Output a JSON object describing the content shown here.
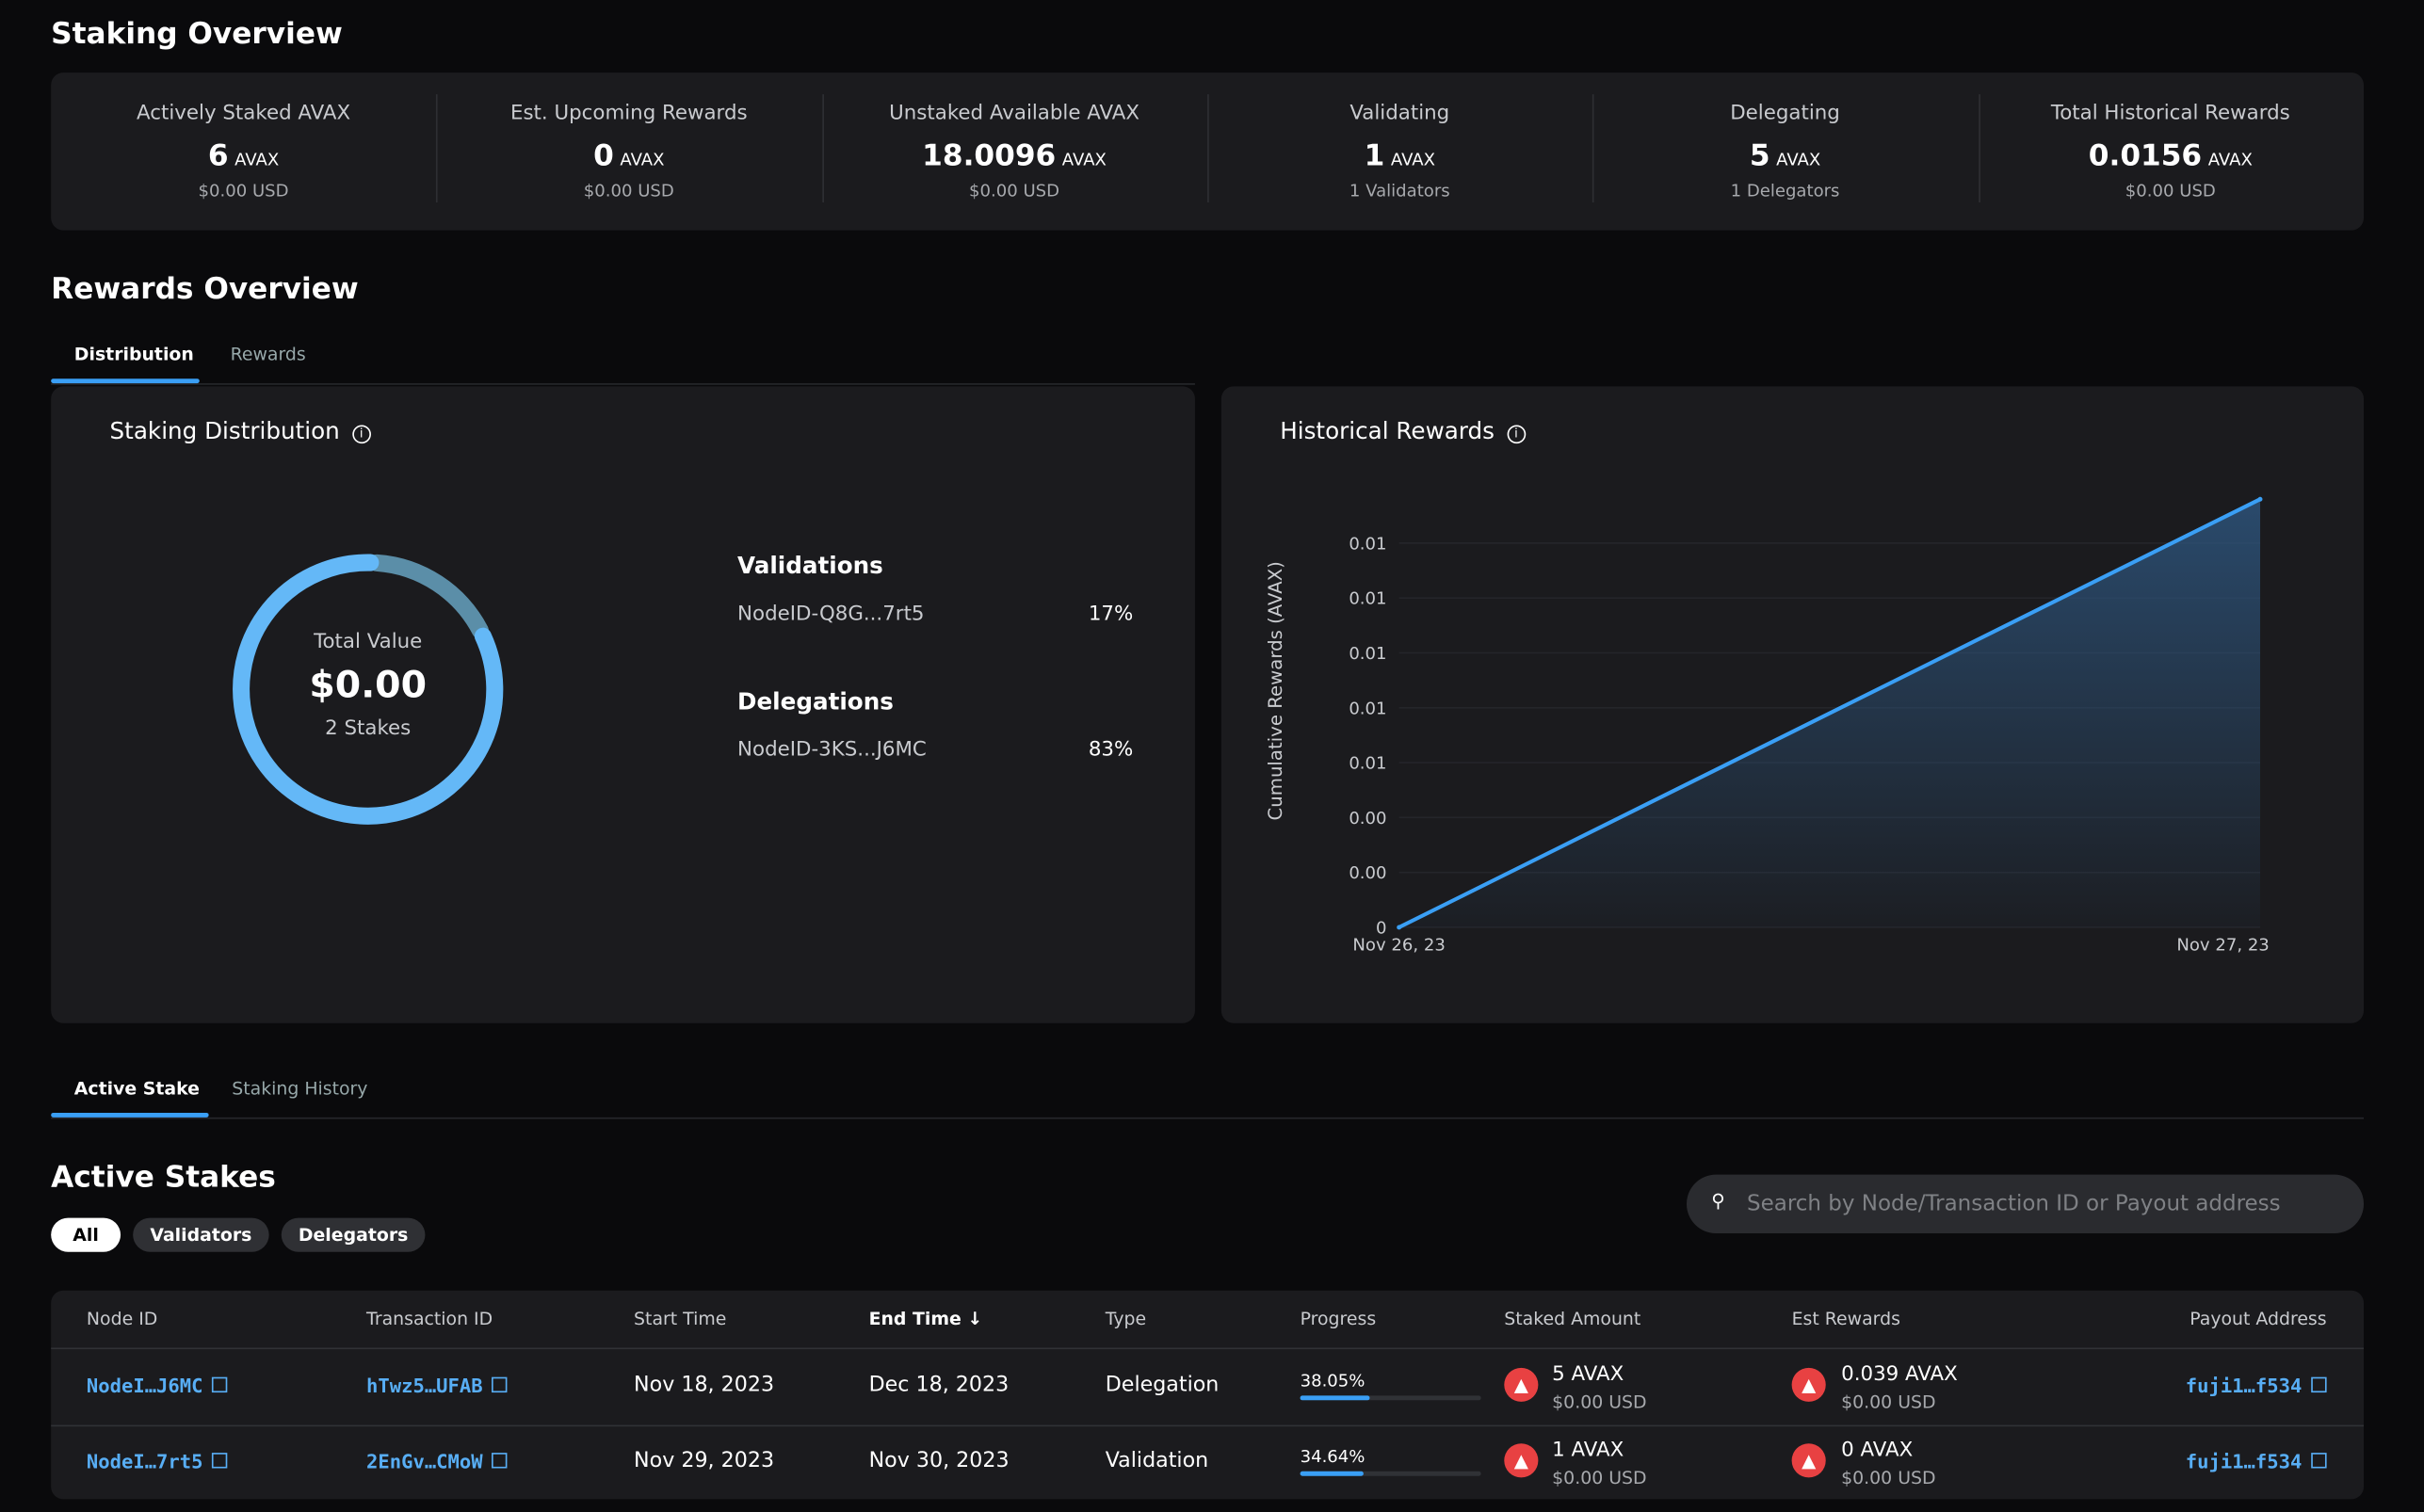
{
  "staking_overview": {
    "title": "Staking Overview",
    "stats": [
      {
        "label": "Actively Staked AVAX",
        "value": "6",
        "unit": "AVAX",
        "sub": "$0.00 USD"
      },
      {
        "label": "Est. Upcoming Rewards",
        "value": "0",
        "unit": "AVAX",
        "sub": "$0.00 USD"
      },
      {
        "label": "Unstaked Available AVAX",
        "value": "18.0096",
        "unit": "AVAX",
        "sub": "$0.00 USD"
      },
      {
        "label": "Validating",
        "value": "1",
        "unit": "AVAX",
        "sub": "1 Validators"
      },
      {
        "label": "Delegating",
        "value": "5",
        "unit": "AVAX",
        "sub": "1 Delegators"
      },
      {
        "label": "Total Historical Rewards",
        "value": "0.0156",
        "unit": "AVAX",
        "sub": "$0.00 USD"
      }
    ]
  },
  "rewards_overview": {
    "title": "Rewards Overview",
    "tabs": [
      "Distribution",
      "Rewards"
    ],
    "active_tab": "Distribution"
  },
  "distribution": {
    "title": "Staking Distribution",
    "center_label": "Total Value",
    "center_value": "$0.00",
    "center_sub": "2 Stakes",
    "groups": [
      {
        "title": "Validations",
        "node": "NodeID-Q8G...7rt5",
        "percent": "17%",
        "fraction": 0.17,
        "color": "#5b8ea8"
      },
      {
        "title": "Delegations",
        "node": "NodeID-3KS...J6MC",
        "percent": "83%",
        "fraction": 0.83,
        "color": "#64b8f7"
      }
    ]
  },
  "chart_data": {
    "type": "area",
    "title": "Historical Rewards",
    "ylabel": "Cumulative Rewards (AVAX)",
    "xlabel": "",
    "x": [
      "Nov 26, 23",
      "Nov 27, 23"
    ],
    "y": [
      0,
      0.0156
    ],
    "yticks": [
      0,
      0.002,
      0.004,
      0.006,
      0.008,
      0.01,
      0.012,
      0.014
    ],
    "ytick_labels": [
      "0",
      "0.00",
      "0.00",
      "0.01",
      "0.01",
      "0.01",
      "0.01",
      "0.01"
    ],
    "ylim": [
      0,
      0.0156
    ],
    "grid": true,
    "color": "#3a9ff5"
  },
  "stake_tabs": {
    "tabs": [
      "Active Stake",
      "Staking History"
    ],
    "active": "Active Stake"
  },
  "active_stakes": {
    "title": "Active Stakes",
    "filters": [
      "All",
      "Validators",
      "Delegators"
    ],
    "active_filter": "All",
    "search_placeholder": "Search by Node/Transaction ID or Payout address",
    "columns": [
      "Node ID",
      "Transaction ID",
      "Start Time",
      "End Time",
      "Type",
      "Progress",
      "Staked Amount",
      "Est Rewards",
      "Payout Address"
    ],
    "sort_icon": "arrow-down",
    "rows": [
      {
        "node": "NodeI…J6MC",
        "tx": "hTwz5…UFAB",
        "start": "Nov 18, 2023",
        "end": "Dec 18, 2023",
        "type": "Delegation",
        "progress": "38.05%",
        "progress_value": 38.05,
        "staked": "5 AVAX",
        "staked_usd": "$0.00 USD",
        "rewards": "0.039 AVAX",
        "rewards_usd": "$0.00 USD",
        "payout": "fuji1…f534"
      },
      {
        "node": "NodeI…7rt5",
        "tx": "2EnGv…CMoW",
        "start": "Nov 29, 2023",
        "end": "Nov 30, 2023",
        "type": "Validation",
        "progress": "34.64%",
        "progress_value": 34.64,
        "staked": "1 AVAX",
        "staked_usd": "$0.00 USD",
        "rewards": "0 AVAX",
        "rewards_usd": "$0.00 USD",
        "payout": "fuji1…f534"
      }
    ]
  }
}
